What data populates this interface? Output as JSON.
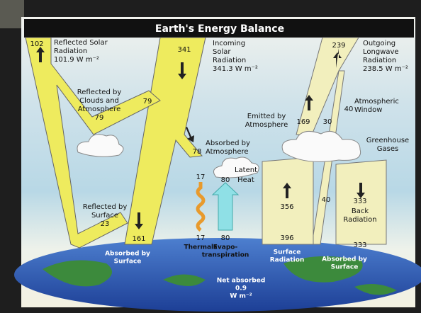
{
  "title": "Earth's Energy Balance",
  "reflected_solar": {
    "value": "102",
    "label": [
      "Reflected Solar",
      "Radiation",
      "101.9 W m⁻²"
    ]
  },
  "incoming_solar": {
    "value": "341",
    "label": [
      "Incoming",
      "Solar",
      "Radiation",
      "341.3 W m⁻²"
    ]
  },
  "outgoing_longwave": {
    "value": "239",
    "label": [
      "Outgoing",
      "Longwave",
      "Radiation",
      "238.5 W m⁻²"
    ]
  },
  "reflected_by_clouds": {
    "value": "79",
    "label": [
      "Reflected by",
      "Clouds and",
      "Atmosphere",
      "79"
    ]
  },
  "absorbed_by_atmosphere": {
    "value": "78",
    "label": [
      "Absorbed by",
      "Atmosphere"
    ]
  },
  "emitted_by_atmosphere": {
    "value": "169",
    "label": [
      "Emitted by",
      "Atmosphere"
    ]
  },
  "cloud_emission": "30",
  "atmospheric_window": {
    "value": "40",
    "label": [
      "Atmospheric",
      "Window"
    ]
  },
  "window_surface": "40",
  "greenhouse_gases": [
    "Greenhouse",
    "Gases"
  ],
  "latent_heat": {
    "value": "80",
    "label": [
      "Latent",
      "Heat"
    ]
  },
  "thermals_top": "17",
  "reflected_by_surface": [
    "Reflected by",
    "Surface",
    "23"
  ],
  "absorbed_by_surface_left": {
    "value": "161",
    "label": [
      "Absorbed by",
      "Surface"
    ]
  },
  "thermals": {
    "value": "17",
    "label": "Thermals"
  },
  "evapotranspiration": {
    "value": "80",
    "label": [
      "Evapo-",
      "transpiration"
    ]
  },
  "surface_radiation": {
    "top": "356",
    "bottom": "396",
    "label": [
      "Surface",
      "Radiation"
    ]
  },
  "back_radiation": {
    "top": "333",
    "label": [
      "Back",
      "Radiation"
    ],
    "bottom": "333"
  },
  "absorbed_by_surface_right": [
    "Absorbed by",
    "Surface"
  ],
  "net_absorbed": [
    "Net absorbed",
    "0.9",
    "W m⁻²"
  ]
}
